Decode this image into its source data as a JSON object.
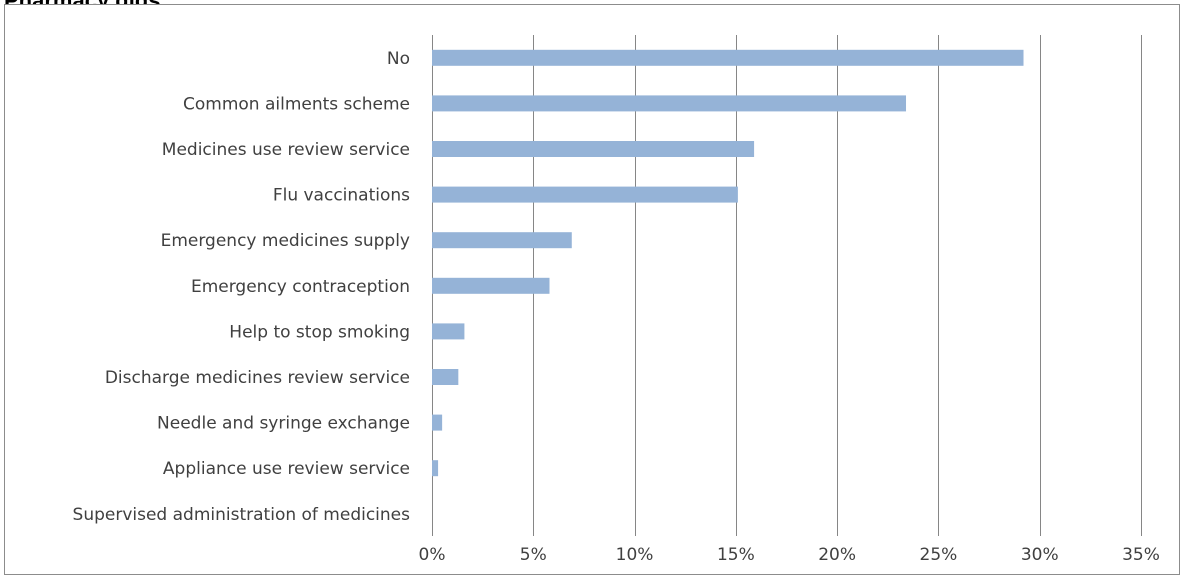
{
  "page": {
    "title": "Pharmacy gigs"
  },
  "chart_data": {
    "type": "bar",
    "orientation": "horizontal",
    "title": "",
    "xlabel": "",
    "ylabel": "",
    "categories": [
      "No",
      "Common ailments scheme",
      "Medicines use review service",
      "Flu vaccinations",
      "Emergency medicines supply",
      "Emergency contraception",
      "Help to stop smoking",
      "Discharge medicines review service",
      "Needle and syringe exchange",
      "Appliance use review service",
      "Supervised administration of medicines"
    ],
    "values": [
      29.2,
      23.4,
      15.9,
      15.1,
      6.9,
      5.8,
      1.6,
      1.3,
      0.5,
      0.3,
      0.0
    ],
    "xlim": [
      0,
      35
    ],
    "ticks": [
      0,
      5,
      10,
      15,
      20,
      25,
      30,
      35
    ],
    "tick_labels": [
      "0%",
      "5%",
      "10%",
      "15%",
      "20%",
      "25%",
      "30%",
      "35%"
    ],
    "grid": true,
    "legend": "none",
    "bar_color": "#95b3d7",
    "grid_color": "#868686"
  }
}
